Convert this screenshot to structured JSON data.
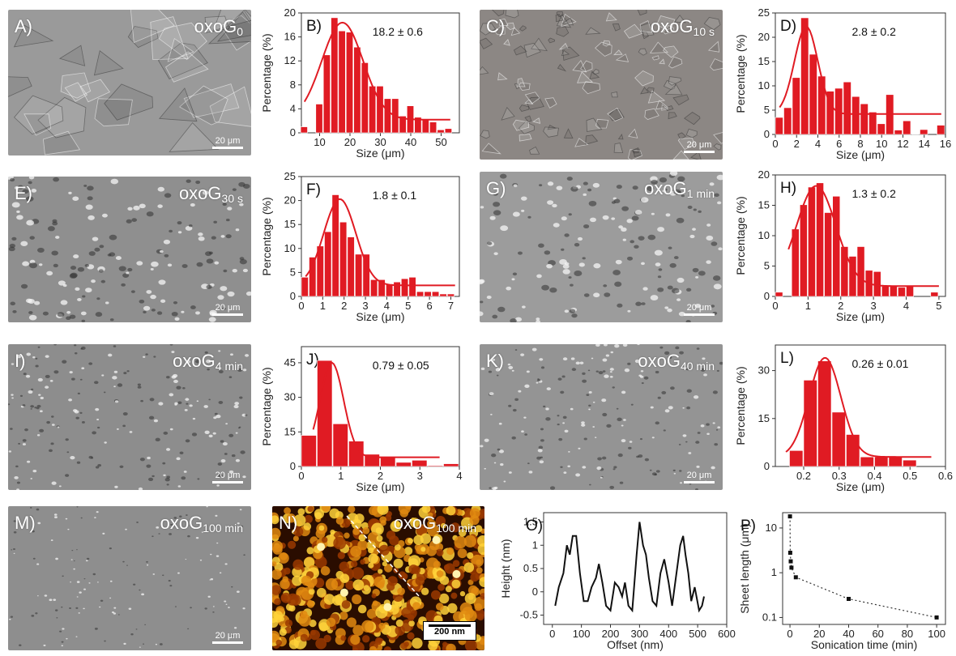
{
  "micrographs": [
    {
      "id": "A",
      "label": "A)",
      "title_base": "oxoG",
      "title_sub": "0",
      "scale": "20 μm",
      "shade": "#9a9a9a",
      "flake": "large",
      "seed": 3
    },
    {
      "id": "C",
      "label": "C)",
      "title_base": "oxoG",
      "title_sub": "10 s",
      "scale": "20 μm",
      "shade": "#8c8784",
      "flake": "medium",
      "seed": 7
    },
    {
      "id": "E",
      "label": "E)",
      "title_base": "oxoG",
      "title_sub": "30 s",
      "scale": "20 μm",
      "shade": "#8f8f8f",
      "flake": "small",
      "seed": 11
    },
    {
      "id": "G",
      "label": "G)",
      "title_base": "oxoG",
      "title_sub": "1 min",
      "scale": "20 μm",
      "shade": "#9c9c9c",
      "flake": "small",
      "seed": 13
    },
    {
      "id": "I",
      "label": "I)",
      "title_base": "oxoG",
      "title_sub": "4 min",
      "scale": "20 μm",
      "shade": "#8d8d8d",
      "flake": "tiny",
      "seed": 17
    },
    {
      "id": "K",
      "label": "K)",
      "title_base": "oxoG",
      "title_sub": "40 min",
      "scale": "20 μm",
      "shade": "#949494",
      "flake": "tiny",
      "seed": 19
    },
    {
      "id": "M",
      "label": "M)",
      "title_base": "oxoG",
      "title_sub": "100 min",
      "scale": "20 μm",
      "shade": "#8e8e8e",
      "flake": "dots",
      "seed": 23
    }
  ],
  "afm": {
    "id": "N",
    "label": "N)",
    "title_base": "oxoG",
    "title_sub": "100 min",
    "scale": "200 nm",
    "colors": [
      "#2a0d00",
      "#9a3a00",
      "#e08a10",
      "#ffd23a",
      "#fff3b0"
    ]
  },
  "accent": "#e01b23",
  "chart_data": [
    {
      "id": "B",
      "label": "B)",
      "type": "bar",
      "mean_label": "18.2 ± 0.6",
      "xlabel": "Size (μm)",
      "ylabel": "Percentage (%)",
      "xlim": [
        4,
        56
      ],
      "ylim": [
        0,
        20
      ],
      "xticks": [
        10,
        20,
        30,
        40,
        50
      ],
      "yticks": [
        0,
        4,
        8,
        12,
        16,
        20
      ],
      "bin_width": 2.5,
      "x": [
        5,
        7.5,
        10,
        12.5,
        15,
        17.5,
        20,
        22.5,
        25,
        27.5,
        30,
        32.5,
        35,
        37.5,
        40,
        42.5,
        45,
        47.5,
        50,
        52.5
      ],
      "values": [
        1,
        0,
        4.8,
        13,
        19.2,
        17,
        16.8,
        14.3,
        11.7,
        7.8,
        7.8,
        5.7,
        5.7,
        2.8,
        4.5,
        2.6,
        2.2,
        1.8,
        0.5,
        0.7
      ],
      "fit": {
        "mu": 17.5,
        "sigma": 6.8,
        "amp": 16.2,
        "base": 2.2,
        "x0": 5,
        "x1": 53
      }
    },
    {
      "id": "D",
      "label": "D)",
      "type": "bar",
      "mean_label": "2.8 ± 0.2",
      "xlabel": "Size (μm)",
      "ylabel": "Percentage (%)",
      "xlim": [
        0,
        16
      ],
      "ylim": [
        0,
        25
      ],
      "xticks": [
        0,
        2,
        4,
        6,
        8,
        10,
        12,
        14,
        16
      ],
      "yticks": [
        0,
        5,
        10,
        15,
        20,
        25
      ],
      "bin_width": 0.8,
      "x": [
        0.4,
        1.2,
        2.0,
        2.8,
        3.6,
        4.4,
        5.2,
        6.0,
        6.8,
        7.6,
        8.4,
        9.2,
        10.0,
        10.8,
        11.6,
        12.4,
        13.2,
        14.0,
        14.8,
        15.6
      ],
      "values": [
        3.5,
        5.5,
        11.7,
        24,
        16.5,
        12,
        8.9,
        9.5,
        10.8,
        7.8,
        6.3,
        4.6,
        2.2,
        8.2,
        0.9,
        2.8,
        0.1,
        1.0,
        0,
        1.9
      ],
      "fit": {
        "mu": 2.9,
        "sigma": 1.1,
        "amp": 18,
        "base": 4.2,
        "x0": 0.4,
        "x1": 15.6
      }
    },
    {
      "id": "F",
      "label": "F)",
      "type": "bar",
      "mean_label": "1.8 ± 0.1",
      "xlabel": "Size (μm)",
      "ylabel": "Percentage (%)",
      "xlim": [
        0,
        7.4
      ],
      "ylim": [
        0,
        25
      ],
      "xticks": [
        0,
        1,
        2,
        3,
        4,
        5,
        6,
        7
      ],
      "yticks": [
        0,
        5,
        10,
        15,
        20,
        25
      ],
      "bin_width": 0.36,
      "x": [
        0.18,
        0.54,
        0.9,
        1.26,
        1.62,
        1.98,
        2.34,
        2.7,
        3.06,
        3.42,
        3.78,
        4.14,
        4.5,
        4.86,
        5.22,
        5.58,
        5.94,
        6.3,
        6.66,
        7.02
      ],
      "values": [
        4,
        8.2,
        10.5,
        13.5,
        21.2,
        15.5,
        12.4,
        8.8,
        8.8,
        3.5,
        3.5,
        2.5,
        3,
        3.7,
        4,
        1,
        1,
        1,
        0.5,
        0.5
      ],
      "fit": {
        "mu": 1.8,
        "sigma": 0.75,
        "amp": 18,
        "base": 2.3,
        "x0": 0.2,
        "x1": 7.2
      }
    },
    {
      "id": "H",
      "label": "H)",
      "type": "bar",
      "mean_label": "1.3 ± 0.2",
      "xlabel": "Size (μm)",
      "ylabel": "Percentage (%)",
      "xlim": [
        0,
        5.2
      ],
      "ylim": [
        0,
        20
      ],
      "xticks": [
        0,
        1,
        2,
        3,
        4,
        5
      ],
      "yticks": [
        0,
        5,
        10,
        15,
        20
      ],
      "bin_width": 0.25,
      "x": [
        0.125,
        0.375,
        0.625,
        0.875,
        1.125,
        1.375,
        1.625,
        1.875,
        2.125,
        2.375,
        2.625,
        2.875,
        3.125,
        3.375,
        3.625,
        3.875,
        4.125,
        4.375,
        4.625,
        4.875
      ],
      "values": [
        0.7,
        0,
        11.1,
        15.1,
        18,
        18.7,
        13.8,
        16.5,
        8.2,
        6.6,
        8.2,
        4.3,
        4.1,
        1.7,
        1.7,
        1.5,
        1.7,
        0,
        0,
        0.7
      ],
      "fit": {
        "mu": 1.25,
        "sigma": 0.6,
        "amp": 16.5,
        "base": 1.7,
        "x0": 0.4,
        "x1": 5
      }
    },
    {
      "id": "J",
      "label": "J)",
      "type": "bar",
      "mean_label": "0.79 ± 0.05",
      "xlabel": "Size (μm)",
      "ylabel": "Percentage (%)",
      "xlim": [
        0,
        4
      ],
      "ylim": [
        0,
        52
      ],
      "xticks": [
        0,
        1,
        2,
        3,
        4
      ],
      "yticks": [
        0,
        15,
        30,
        45
      ],
      "bin_width": 0.4,
      "x": [
        0.2,
        0.6,
        1.0,
        1.4,
        1.8,
        2.2,
        2.6,
        3.0,
        3.4,
        3.8
      ],
      "values": [
        13.5,
        46,
        18.5,
        11,
        5.3,
        3.8,
        1.8,
        2.7,
        0.4,
        1.2
      ],
      "fit": {
        "mu": 0.77,
        "sigma": 0.3,
        "amp": 41,
        "base": 4,
        "x0": 0.3,
        "x1": 3.5
      }
    },
    {
      "id": "L",
      "label": "L)",
      "type": "bar",
      "mean_label": "0.26 ± 0.01",
      "xlabel": "Size (μm)",
      "ylabel": "Percentage (%)",
      "xlim": [
        0.12,
        0.6
      ],
      "ylim": [
        0,
        38
      ],
      "xticks": [
        0.2,
        0.3,
        0.4,
        0.5,
        0.6
      ],
      "yticks": [
        0,
        15,
        30
      ],
      "bin_width": 0.04,
      "x": [
        0.14,
        0.18,
        0.22,
        0.26,
        0.3,
        0.34,
        0.38,
        0.42,
        0.46,
        0.5,
        0.54,
        0.58
      ],
      "values": [
        0,
        5,
        27,
        33,
        17,
        10,
        3,
        3,
        3,
        2,
        0,
        0
      ],
      "fit": {
        "mu": 0.26,
        "sigma": 0.045,
        "amp": 31,
        "base": 3,
        "x0": 0.15,
        "x1": 0.56
      }
    },
    {
      "id": "O",
      "label": "O)",
      "type": "line",
      "xlabel": "Offset (nm)",
      "ylabel": "Height (nm)",
      "xlim": [
        -30,
        600
      ],
      "ylim": [
        -0.7,
        1.7
      ],
      "xticks": [
        0,
        100,
        200,
        300,
        400,
        500,
        600
      ],
      "yticks": [
        -0.5,
        0.0,
        0.5,
        1.0,
        1.5
      ],
      "x": [
        10,
        22,
        38,
        50,
        60,
        70,
        82,
        95,
        108,
        122,
        135,
        150,
        160,
        172,
        185,
        200,
        215,
        228,
        240,
        250,
        262,
        275,
        290,
        300,
        312,
        322,
        332,
        345,
        358,
        372,
        385,
        400,
        412,
        425,
        440,
        450,
        458,
        468,
        478,
        490,
        505,
        515,
        522
      ],
      "values": [
        -0.3,
        0.1,
        0.4,
        1.0,
        0.8,
        1.2,
        1.2,
        0.4,
        -0.2,
        -0.2,
        0.1,
        0.3,
        0.6,
        0.2,
        -0.3,
        -0.4,
        0.2,
        0.1,
        -0.1,
        0.2,
        -0.3,
        -0.4,
        0.8,
        1.5,
        1.0,
        0.8,
        0.3,
        -0.2,
        -0.3,
        0.4,
        0.7,
        0.2,
        -0.3,
        0.3,
        1.0,
        1.2,
        0.8,
        0.4,
        -0.2,
        0.1,
        -0.4,
        -0.3,
        -0.1
      ]
    },
    {
      "id": "P",
      "label": "P)",
      "type": "scatter",
      "xlabel": "Sonication time (min)",
      "ylabel": "Sheet length (μm)",
      "xlim": [
        -5,
        106
      ],
      "ylim": [
        0.07,
        22
      ],
      "log_y": true,
      "xticks": [
        0,
        20,
        40,
        60,
        80,
        100
      ],
      "yticks": [
        0.1,
        1,
        10
      ],
      "ytick_labels": [
        "0.1",
        "1",
        "10"
      ],
      "x": [
        0,
        0.17,
        0.5,
        1,
        4,
        40,
        100
      ],
      "values": [
        18.2,
        2.8,
        1.8,
        1.3,
        0.79,
        0.26,
        0.1
      ]
    }
  ]
}
